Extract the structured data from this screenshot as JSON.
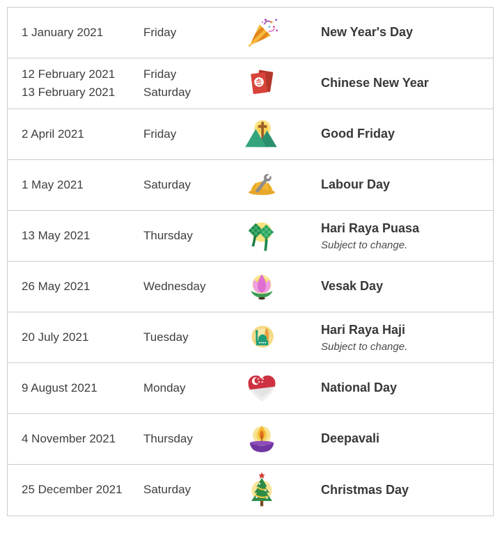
{
  "table": {
    "rows": [
      {
        "date": [
          "1 January 2021"
        ],
        "day": [
          "Friday"
        ],
        "icon": "party-popper",
        "name": "New Year's Day",
        "note": ""
      },
      {
        "date": [
          "12 February 2021",
          "13 February 2021"
        ],
        "day": [
          "Friday",
          "Saturday"
        ],
        "icon": "red-envelopes",
        "name": "Chinese New Year",
        "note": ""
      },
      {
        "date": [
          "2 April 2021"
        ],
        "day": [
          "Friday"
        ],
        "icon": "cross-mountains",
        "name": "Good Friday",
        "note": ""
      },
      {
        "date": [
          "1 May 2021"
        ],
        "day": [
          "Saturday"
        ],
        "icon": "hard-hat-wrench",
        "name": "Labour Day",
        "note": ""
      },
      {
        "date": [
          "13 May 2021"
        ],
        "day": [
          "Thursday"
        ],
        "icon": "ketupat",
        "name": "Hari Raya Puasa",
        "note": "Subject to change."
      },
      {
        "date": [
          "26 May 2021"
        ],
        "day": [
          "Wednesday"
        ],
        "icon": "lotus",
        "name": "Vesak Day",
        "note": ""
      },
      {
        "date": [
          "20 July 2021"
        ],
        "day": [
          "Tuesday"
        ],
        "icon": "mosque-crescent",
        "name": "Hari Raya Haji",
        "note": "Subject to change."
      },
      {
        "date": [
          "9 August 2021"
        ],
        "day": [
          "Monday"
        ],
        "icon": "singapore-heart",
        "name": "National Day",
        "note": ""
      },
      {
        "date": [
          "4 November 2021"
        ],
        "day": [
          "Thursday"
        ],
        "icon": "diya-lamp",
        "name": "Deepavali",
        "note": ""
      },
      {
        "date": [
          "25 December 2021"
        ],
        "day": [
          "Saturday"
        ],
        "icon": "christmas-tree",
        "name": "Christmas Day",
        "note": ""
      }
    ]
  }
}
